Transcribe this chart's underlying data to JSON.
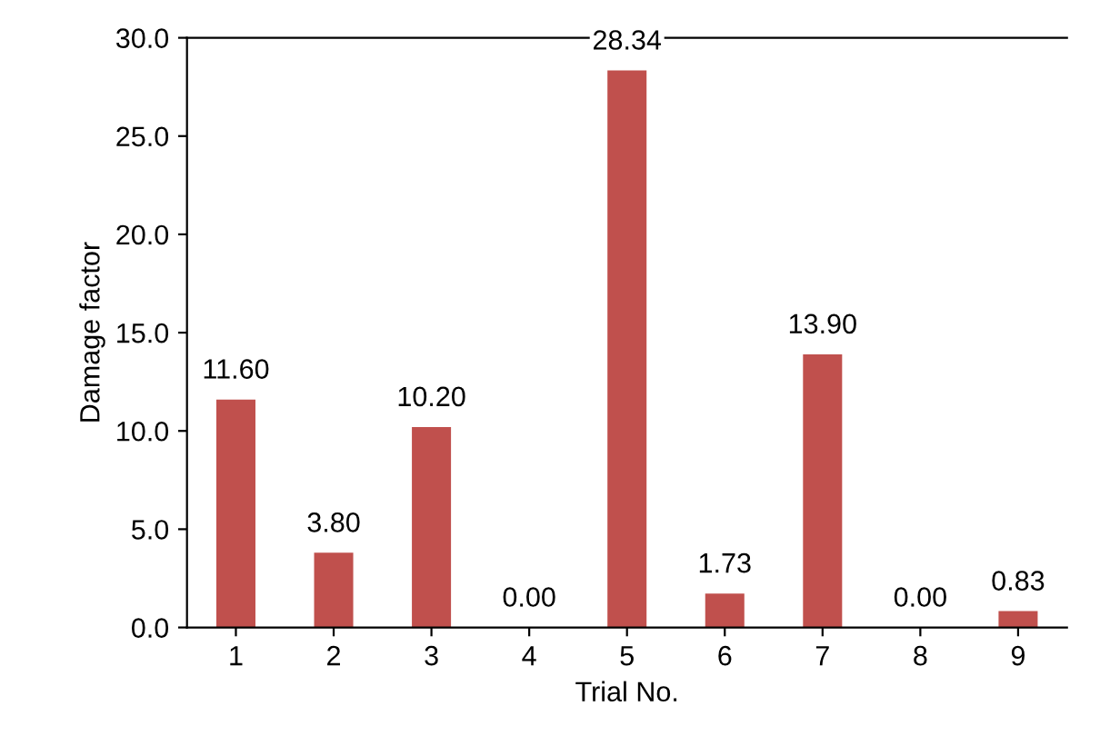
{
  "chart_data": {
    "type": "bar",
    "xlabel": "Trial No.",
    "ylabel": "Damage factor",
    "categories": [
      "1",
      "2",
      "3",
      "4",
      "5",
      "6",
      "7",
      "8",
      "9"
    ],
    "values": [
      11.6,
      3.8,
      10.2,
      0.0,
      28.34,
      1.73,
      13.9,
      0.0,
      0.83
    ],
    "value_labels": [
      "11.60",
      "3.80",
      "10.20",
      "0.00",
      "28.34",
      "1.73",
      "13.90",
      "0.00",
      "0.83"
    ],
    "color": "#c0504d",
    "ylim": [
      0,
      30
    ],
    "yticks": [
      {
        "value": 0,
        "label": "0.0"
      },
      {
        "value": 5,
        "label": "5.0"
      },
      {
        "value": 10,
        "label": "10.0"
      },
      {
        "value": 15,
        "label": "15.0"
      },
      {
        "value": 20,
        "label": "20.0"
      },
      {
        "value": 25,
        "label": "25.0"
      },
      {
        "value": 30,
        "label": "30.0"
      }
    ],
    "grid": false,
    "legend": false
  }
}
